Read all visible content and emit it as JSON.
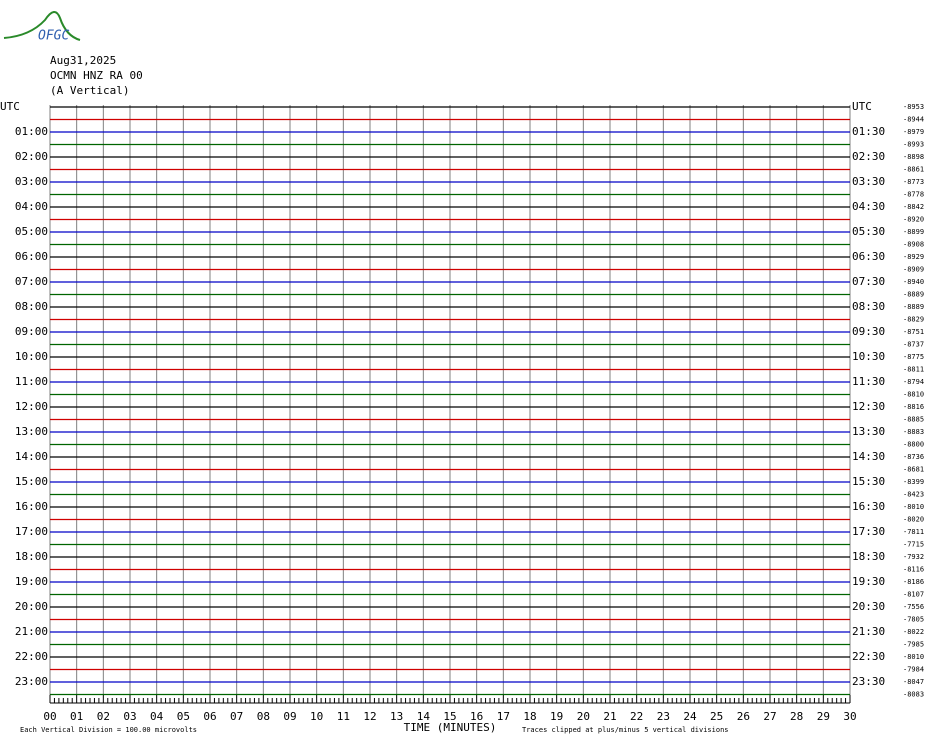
{
  "logo": "OFGC",
  "header": {
    "date": "Aug31,2025",
    "station": "OCMN HNZ RA 00",
    "component": "(A Vertical)"
  },
  "left_labels": [
    "UTC",
    "01:00",
    "02:00",
    "03:00",
    "04:00",
    "05:00",
    "06:00",
    "07:00",
    "08:00",
    "09:00",
    "10:00",
    "11:00",
    "12:00",
    "13:00",
    "14:00",
    "15:00",
    "16:00",
    "17:00",
    "18:00",
    "19:00",
    "20:00",
    "21:00",
    "22:00",
    "23:00"
  ],
  "right_labels": [
    "UTC",
    "01:30",
    "02:30",
    "03:30",
    "04:30",
    "05:30",
    "06:30",
    "07:30",
    "08:30",
    "09:30",
    "10:30",
    "11:30",
    "12:30",
    "13:30",
    "14:30",
    "15:30",
    "16:30",
    "17:30",
    "18:30",
    "19:30",
    "20:30",
    "21:30",
    "22:30",
    "23:30"
  ],
  "trace_offsets": [
    -8953,
    -8944,
    -8979,
    -8993,
    -8898,
    -8861,
    -8773,
    -8778,
    -8842,
    -8920,
    -8899,
    -8908,
    -8929,
    -8909,
    -8940,
    -8889,
    -8889,
    -8829,
    -8751,
    -8737,
    -8775,
    -8811,
    -8794,
    -8810,
    -8816,
    -8885,
    -8883,
    -8800,
    -8736,
    -8681,
    -8399,
    -8423,
    -8010,
    -8020,
    -7811,
    -7715,
    -7932,
    -8116,
    -8186,
    -8107,
    -7556,
    -7805,
    -8022,
    -7985,
    -8010,
    -7984,
    -8047,
    -8083
  ],
  "trace_colors": [
    "#000000",
    "#d00000",
    "#0000c8",
    "#006400"
  ],
  "x_labels": [
    "00",
    "01",
    "02",
    "03",
    "04",
    "05",
    "06",
    "07",
    "08",
    "09",
    "10",
    "11",
    "12",
    "13",
    "14",
    "15",
    "16",
    "17",
    "18",
    "19",
    "20",
    "21",
    "22",
    "23",
    "24",
    "25",
    "26",
    "27",
    "28",
    "29",
    "30"
  ],
  "x_axis_title": "TIME (MINUTES)",
  "footer_left": "Each Vertical Division =  100.00 microvolts",
  "footer_right": "Traces clipped at plus/minus 5 vertical divisions"
}
